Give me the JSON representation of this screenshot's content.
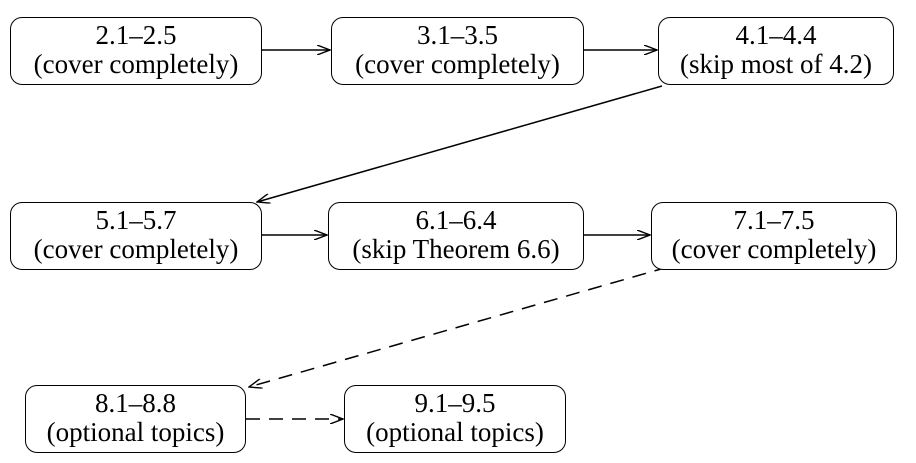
{
  "nodes": [
    {
      "id": "n1",
      "range": "2.1–2.5",
      "note": "(cover completely)"
    },
    {
      "id": "n2",
      "range": "3.1–3.5",
      "note": "(cover completely)"
    },
    {
      "id": "n3",
      "range": "4.1–4.4",
      "note": "(skip most of 4.2)"
    },
    {
      "id": "n4",
      "range": "5.1–5.7",
      "note": "(cover completely)"
    },
    {
      "id": "n5",
      "range": "6.1–6.4",
      "note": "(skip Theorem 6.6)"
    },
    {
      "id": "n6",
      "range": "7.1–7.5",
      "note": "(cover completely)"
    },
    {
      "id": "n7",
      "range": "8.1–8.8",
      "note": "(optional topics)"
    },
    {
      "id": "n8",
      "range": "9.1–9.5",
      "note": "(optional topics)"
    }
  ],
  "edges": [
    {
      "from": "n1",
      "to": "n2",
      "style": "solid"
    },
    {
      "from": "n2",
      "to": "n3",
      "style": "solid"
    },
    {
      "from": "n3",
      "to": "n4",
      "style": "solid"
    },
    {
      "from": "n4",
      "to": "n5",
      "style": "solid"
    },
    {
      "from": "n5",
      "to": "n6",
      "style": "solid"
    },
    {
      "from": "n6",
      "to": "n7",
      "style": "dashed"
    },
    {
      "from": "n7",
      "to": "n8",
      "style": "dashed"
    }
  ]
}
